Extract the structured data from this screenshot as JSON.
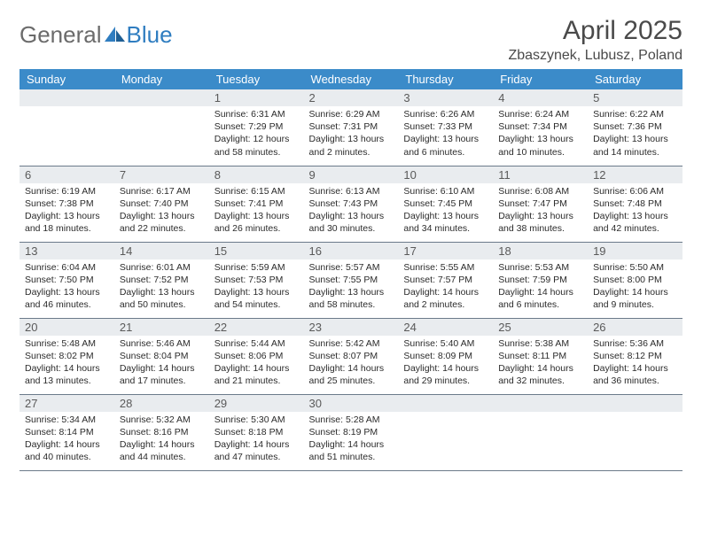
{
  "brand": {
    "part1": "General",
    "part2": "Blue"
  },
  "title": "April 2025",
  "location": "Zbaszynek, Lubusz, Poland",
  "colors": {
    "header_bg": "#3b8bc9",
    "header_text": "#ffffff",
    "daynum_bg": "#e9ecef",
    "logo_gray": "#6b6b6b",
    "logo_blue": "#2f7dc0",
    "rule": "#6b7a8a"
  },
  "weekdays": [
    "Sunday",
    "Monday",
    "Tuesday",
    "Wednesday",
    "Thursday",
    "Friday",
    "Saturday"
  ],
  "weeks": [
    [
      {
        "empty": true
      },
      {
        "empty": true
      },
      {
        "day": "1",
        "sunrise": "Sunrise: 6:31 AM",
        "sunset": "Sunset: 7:29 PM",
        "daylight1": "Daylight: 12 hours",
        "daylight2": "and 58 minutes."
      },
      {
        "day": "2",
        "sunrise": "Sunrise: 6:29 AM",
        "sunset": "Sunset: 7:31 PM",
        "daylight1": "Daylight: 13 hours",
        "daylight2": "and 2 minutes."
      },
      {
        "day": "3",
        "sunrise": "Sunrise: 6:26 AM",
        "sunset": "Sunset: 7:33 PM",
        "daylight1": "Daylight: 13 hours",
        "daylight2": "and 6 minutes."
      },
      {
        "day": "4",
        "sunrise": "Sunrise: 6:24 AM",
        "sunset": "Sunset: 7:34 PM",
        "daylight1": "Daylight: 13 hours",
        "daylight2": "and 10 minutes."
      },
      {
        "day": "5",
        "sunrise": "Sunrise: 6:22 AM",
        "sunset": "Sunset: 7:36 PM",
        "daylight1": "Daylight: 13 hours",
        "daylight2": "and 14 minutes."
      }
    ],
    [
      {
        "day": "6",
        "sunrise": "Sunrise: 6:19 AM",
        "sunset": "Sunset: 7:38 PM",
        "daylight1": "Daylight: 13 hours",
        "daylight2": "and 18 minutes."
      },
      {
        "day": "7",
        "sunrise": "Sunrise: 6:17 AM",
        "sunset": "Sunset: 7:40 PM",
        "daylight1": "Daylight: 13 hours",
        "daylight2": "and 22 minutes."
      },
      {
        "day": "8",
        "sunrise": "Sunrise: 6:15 AM",
        "sunset": "Sunset: 7:41 PM",
        "daylight1": "Daylight: 13 hours",
        "daylight2": "and 26 minutes."
      },
      {
        "day": "9",
        "sunrise": "Sunrise: 6:13 AM",
        "sunset": "Sunset: 7:43 PM",
        "daylight1": "Daylight: 13 hours",
        "daylight2": "and 30 minutes."
      },
      {
        "day": "10",
        "sunrise": "Sunrise: 6:10 AM",
        "sunset": "Sunset: 7:45 PM",
        "daylight1": "Daylight: 13 hours",
        "daylight2": "and 34 minutes."
      },
      {
        "day": "11",
        "sunrise": "Sunrise: 6:08 AM",
        "sunset": "Sunset: 7:47 PM",
        "daylight1": "Daylight: 13 hours",
        "daylight2": "and 38 minutes."
      },
      {
        "day": "12",
        "sunrise": "Sunrise: 6:06 AM",
        "sunset": "Sunset: 7:48 PM",
        "daylight1": "Daylight: 13 hours",
        "daylight2": "and 42 minutes."
      }
    ],
    [
      {
        "day": "13",
        "sunrise": "Sunrise: 6:04 AM",
        "sunset": "Sunset: 7:50 PM",
        "daylight1": "Daylight: 13 hours",
        "daylight2": "and 46 minutes."
      },
      {
        "day": "14",
        "sunrise": "Sunrise: 6:01 AM",
        "sunset": "Sunset: 7:52 PM",
        "daylight1": "Daylight: 13 hours",
        "daylight2": "and 50 minutes."
      },
      {
        "day": "15",
        "sunrise": "Sunrise: 5:59 AM",
        "sunset": "Sunset: 7:53 PM",
        "daylight1": "Daylight: 13 hours",
        "daylight2": "and 54 minutes."
      },
      {
        "day": "16",
        "sunrise": "Sunrise: 5:57 AM",
        "sunset": "Sunset: 7:55 PM",
        "daylight1": "Daylight: 13 hours",
        "daylight2": "and 58 minutes."
      },
      {
        "day": "17",
        "sunrise": "Sunrise: 5:55 AM",
        "sunset": "Sunset: 7:57 PM",
        "daylight1": "Daylight: 14 hours",
        "daylight2": "and 2 minutes."
      },
      {
        "day": "18",
        "sunrise": "Sunrise: 5:53 AM",
        "sunset": "Sunset: 7:59 PM",
        "daylight1": "Daylight: 14 hours",
        "daylight2": "and 6 minutes."
      },
      {
        "day": "19",
        "sunrise": "Sunrise: 5:50 AM",
        "sunset": "Sunset: 8:00 PM",
        "daylight1": "Daylight: 14 hours",
        "daylight2": "and 9 minutes."
      }
    ],
    [
      {
        "day": "20",
        "sunrise": "Sunrise: 5:48 AM",
        "sunset": "Sunset: 8:02 PM",
        "daylight1": "Daylight: 14 hours",
        "daylight2": "and 13 minutes."
      },
      {
        "day": "21",
        "sunrise": "Sunrise: 5:46 AM",
        "sunset": "Sunset: 8:04 PM",
        "daylight1": "Daylight: 14 hours",
        "daylight2": "and 17 minutes."
      },
      {
        "day": "22",
        "sunrise": "Sunrise: 5:44 AM",
        "sunset": "Sunset: 8:06 PM",
        "daylight1": "Daylight: 14 hours",
        "daylight2": "and 21 minutes."
      },
      {
        "day": "23",
        "sunrise": "Sunrise: 5:42 AM",
        "sunset": "Sunset: 8:07 PM",
        "daylight1": "Daylight: 14 hours",
        "daylight2": "and 25 minutes."
      },
      {
        "day": "24",
        "sunrise": "Sunrise: 5:40 AM",
        "sunset": "Sunset: 8:09 PM",
        "daylight1": "Daylight: 14 hours",
        "daylight2": "and 29 minutes."
      },
      {
        "day": "25",
        "sunrise": "Sunrise: 5:38 AM",
        "sunset": "Sunset: 8:11 PM",
        "daylight1": "Daylight: 14 hours",
        "daylight2": "and 32 minutes."
      },
      {
        "day": "26",
        "sunrise": "Sunrise: 5:36 AM",
        "sunset": "Sunset: 8:12 PM",
        "daylight1": "Daylight: 14 hours",
        "daylight2": "and 36 minutes."
      }
    ],
    [
      {
        "day": "27",
        "sunrise": "Sunrise: 5:34 AM",
        "sunset": "Sunset: 8:14 PM",
        "daylight1": "Daylight: 14 hours",
        "daylight2": "and 40 minutes."
      },
      {
        "day": "28",
        "sunrise": "Sunrise: 5:32 AM",
        "sunset": "Sunset: 8:16 PM",
        "daylight1": "Daylight: 14 hours",
        "daylight2": "and 44 minutes."
      },
      {
        "day": "29",
        "sunrise": "Sunrise: 5:30 AM",
        "sunset": "Sunset: 8:18 PM",
        "daylight1": "Daylight: 14 hours",
        "daylight2": "and 47 minutes."
      },
      {
        "day": "30",
        "sunrise": "Sunrise: 5:28 AM",
        "sunset": "Sunset: 8:19 PM",
        "daylight1": "Daylight: 14 hours",
        "daylight2": "and 51 minutes."
      },
      {
        "empty": true
      },
      {
        "empty": true
      },
      {
        "empty": true
      }
    ]
  ]
}
